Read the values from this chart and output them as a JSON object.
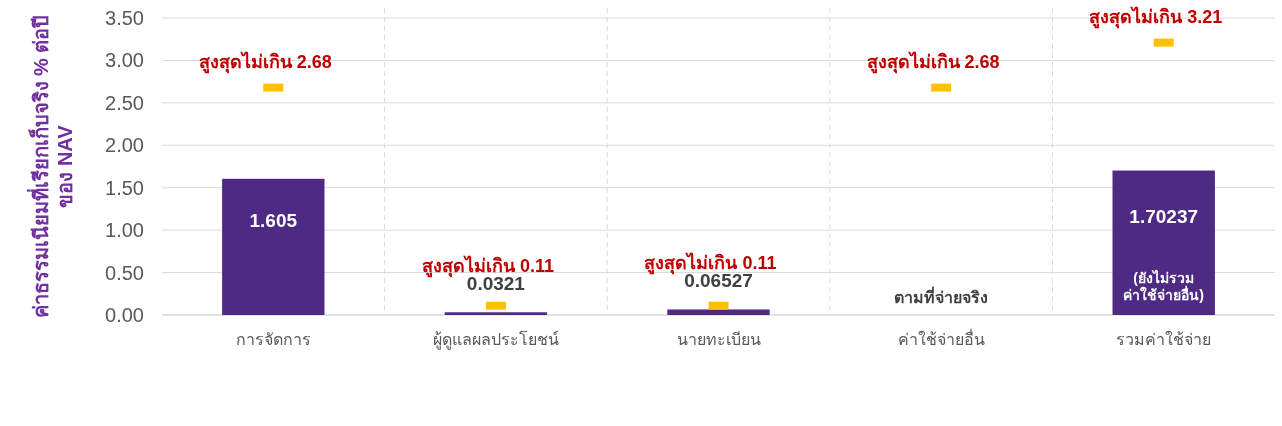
{
  "chart_data": {
    "type": "bar",
    "ylabel": "ค่าธรรมเนียมที่เรียกเก็บจริง % ต่อปี\nของ NAV",
    "categories": [
      "การจัดการ",
      "ผู้ดูแลผลประโยชน์",
      "นายทะเบียน",
      "ค่าใช้จ่ายอื่น",
      "รวมค่าใช้จ่าย"
    ],
    "series": [
      {
        "color": "#4e2a84",
        "values": [
          1.605,
          0.0321,
          0.06527,
          null,
          1.70237
        ],
        "value_labels": [
          "1.605",
          "0.0321",
          "0.06527",
          null,
          "1.70237"
        ]
      },
      {
        "type": "scatter",
        "color": "#ffc000",
        "values": [
          2.68,
          0.11,
          0.11,
          2.68,
          3.21
        ],
        "value_labels": [
          "สูงสุดไม่เกิน 2.68",
          "สูงสุดไม่เกิน 0.11",
          "สูงสุดไม่เกิน 0.11",
          "สูงสุดไม่เกิน 2.68",
          "สูงสุดไม่เกิน 3.21"
        ]
      }
    ],
    "annotations": [
      "ตามที่จ่ายจริง",
      "(ยังไม่รวม\nค่าใช้จ่ายอื่น)"
    ],
    "ylim": [
      0,
      3.5
    ],
    "yticks": [
      "0.00",
      "0.50",
      "1.00",
      "1.50",
      "2.00",
      "2.50",
      "3.00",
      "3.50"
    ],
    "grid": true
  }
}
